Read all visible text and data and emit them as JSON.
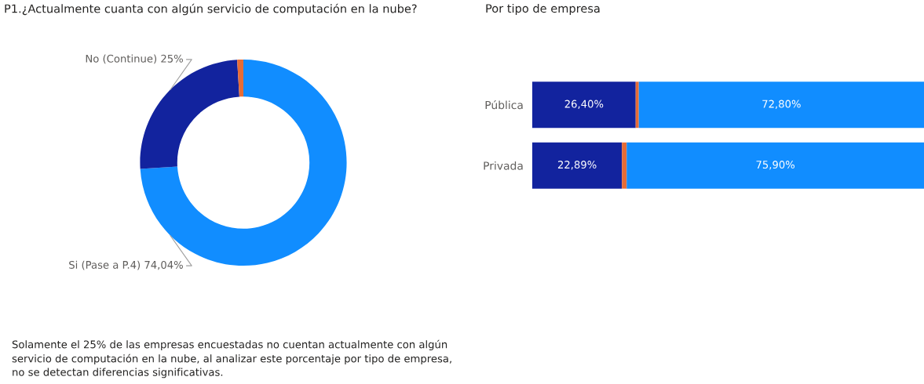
{
  "chart_data": [
    {
      "type": "donut",
      "title": "P1.¿Actualmente cuanta con algún servicio de computación en la nube?",
      "categories": [
        "Si (Pase a P.4)",
        "No (Continue)",
        null
      ],
      "values": [
        74.04,
        25,
        0.96
      ],
      "colors": [
        "#118dff",
        "#12239e",
        "#e66c37"
      ],
      "value_labels": [
        "74,04%",
        "25%",
        null
      ],
      "annotations": [
        "Solamente el 25% de las empresas encuestadas no cuentan actualmente con algún\nservicio de computación en la nube, al analizar este porcentaje por tipo de empresa,\nno se detectan diferencias significativas."
      ]
    },
    {
      "type": "bar",
      "title": "Por tipo de empresa",
      "orientation": "horizontal",
      "stacked": true,
      "categories": [
        "Pública",
        "Privada"
      ],
      "tick_labels": "y",
      "series": [
        {
          "color": "#12239e",
          "values": [
            26.4,
            22.89
          ],
          "value_labels": [
            "26,40%",
            "22,89%"
          ]
        },
        {
          "color": "#e66c37",
          "values": [
            0.8,
            1.21
          ],
          "value_labels": [
            null,
            null
          ]
        },
        {
          "color": "#118dff",
          "values": [
            72.8,
            75.9
          ],
          "value_labels": [
            "72,80%",
            "75,90%"
          ]
        }
      ]
    }
  ]
}
